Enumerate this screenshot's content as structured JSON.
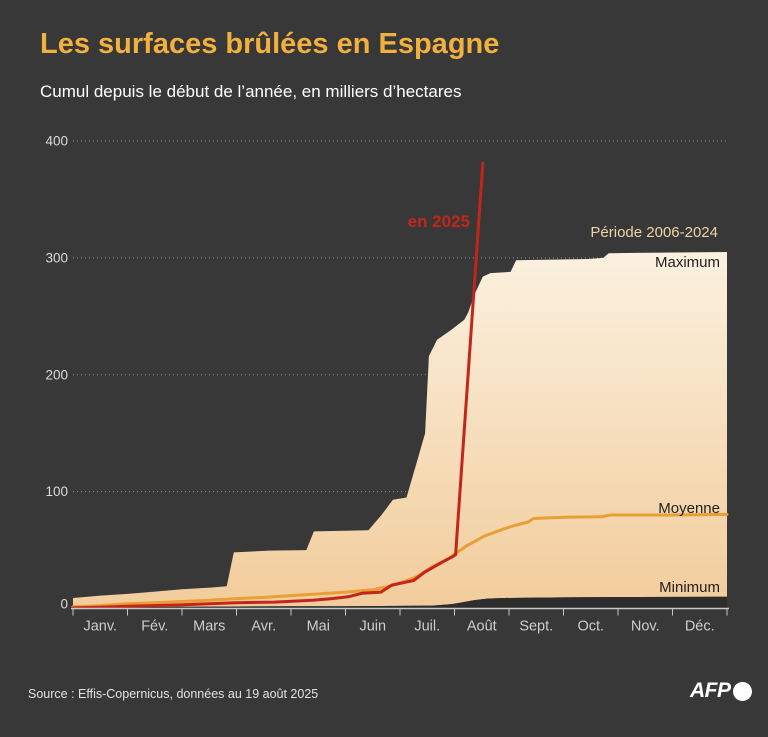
{
  "page": {
    "title": "Les surfaces brûlées en Espagne",
    "subtitle": "Cumul depuis le début de l’année, en milliers d’hectares"
  },
  "annotations": {
    "current_year": "en 2025",
    "band_period": "Période 2006-2024",
    "maximum": "Maximum",
    "moyenne": "Moyenne",
    "minimum": "Minimum"
  },
  "footer": {
    "source": "Source : Effis-Copernicus, données au 19 août 2025",
    "logo": "AFP"
  },
  "colors": {
    "background": "#383838",
    "title": "#F2B03E",
    "subtitle": "#FFFFFF",
    "axis_text": "#CDCDCD",
    "ytick_text": "#DADADA",
    "grid": "#8F8F8F",
    "axis_line": "#C8C8C8",
    "band_top": "#FBF1DF",
    "band_bottom": "#F2CC9C",
    "band_label": "#EFD3A6",
    "dark_label": "#1F1F1F",
    "min_fill": "#2D2D2D",
    "red_2025": "#C3251C",
    "orange_moyenne": "#E89F33"
  },
  "chart_data": {
    "type": "area+line",
    "title": "Les surfaces brûlées en Espagne",
    "subtitle": "Cumul depuis le début de l’année, en milliers d’hectares",
    "unit": "milliers d’hectares",
    "x_tick_labels": [
      "Janv.",
      "Fév.",
      "Mars",
      "Avr.",
      "Mai",
      "Juin",
      "Juil.",
      "Août",
      "Sept.",
      "Oct.",
      "Nov.",
      "Déc."
    ],
    "y_ticks": [
      0,
      100,
      200,
      300,
      400
    ],
    "ylim": [
      0,
      400
    ],
    "xlim_months": [
      0,
      12
    ],
    "grid": "dotted-horizontal",
    "band": {
      "label": "Période 2006-2024",
      "max_label": "Maximum",
      "min_label": "Minimum",
      "max_points": [
        [
          0,
          9
        ],
        [
          0.5,
          11
        ],
        [
          1,
          12.5
        ],
        [
          1.5,
          14.5
        ],
        [
          2,
          16.5
        ],
        [
          2.55,
          18
        ],
        [
          2.82,
          19
        ],
        [
          2.95,
          48
        ],
        [
          3.6,
          49.5
        ],
        [
          4.28,
          50
        ],
        [
          4.42,
          66
        ],
        [
          5.42,
          67
        ],
        [
          5.66,
          80
        ],
        [
          5.87,
          93
        ],
        [
          6.12,
          95
        ],
        [
          6.32,
          127
        ],
        [
          6.46,
          150
        ],
        [
          6.53,
          216
        ],
        [
          6.68,
          230
        ],
        [
          6.93,
          238
        ],
        [
          7.18,
          247
        ],
        [
          7.25,
          253
        ],
        [
          7.38,
          270
        ],
        [
          7.52,
          284
        ],
        [
          7.66,
          287
        ],
        [
          8.03,
          288
        ],
        [
          8.13,
          298
        ],
        [
          9.45,
          299
        ],
        [
          9.73,
          300
        ],
        [
          9.83,
          304
        ],
        [
          12,
          305
        ]
      ],
      "min_points": [
        [
          0,
          1
        ],
        [
          1,
          1.2
        ],
        [
          2,
          1.5
        ],
        [
          3,
          1.7
        ],
        [
          4,
          2
        ],
        [
          5,
          2
        ],
        [
          6,
          2.2
        ],
        [
          6.6,
          2.5
        ],
        [
          6.95,
          3.8
        ],
        [
          7.1,
          5
        ],
        [
          7.35,
          7
        ],
        [
          7.6,
          8.5
        ],
        [
          7.9,
          9
        ],
        [
          8.5,
          9.3
        ],
        [
          9,
          9.5
        ],
        [
          10,
          9.8
        ],
        [
          12,
          10
        ]
      ]
    },
    "series": [
      {
        "name": "Moyenne",
        "color_key": "orange_moyenne",
        "points": [
          [
            0,
            1.5
          ],
          [
            0.5,
            2.5
          ],
          [
            1,
            4
          ],
          [
            1.5,
            5
          ],
          [
            2,
            6
          ],
          [
            2.5,
            7
          ],
          [
            3,
            8.5
          ],
          [
            3.5,
            9.5
          ],
          [
            4,
            11
          ],
          [
            4.5,
            12.5
          ],
          [
            5,
            14
          ],
          [
            5.5,
            16
          ],
          [
            5.8,
            19
          ],
          [
            6,
            22
          ],
          [
            6.3,
            27
          ],
          [
            6.6,
            36
          ],
          [
            6.9,
            43
          ],
          [
            7.2,
            53
          ],
          [
            7.55,
            62
          ],
          [
            7.9,
            68
          ],
          [
            8.1,
            71
          ],
          [
            8.35,
            74
          ],
          [
            8.45,
            77
          ],
          [
            9,
            78
          ],
          [
            9.7,
            78.5
          ],
          [
            9.85,
            80
          ],
          [
            11,
            80
          ],
          [
            12,
            80.5
          ]
        ]
      },
      {
        "name": "en 2025",
        "color_key": "red_2025",
        "points": [
          [
            0,
            0.5
          ],
          [
            0.5,
            1
          ],
          [
            1,
            2
          ],
          [
            1.9,
            3
          ],
          [
            2.5,
            4
          ],
          [
            3,
            5
          ],
          [
            3.7,
            5.5
          ],
          [
            4.4,
            7
          ],
          [
            4.75,
            8.5
          ],
          [
            5.05,
            10
          ],
          [
            5.3,
            13
          ],
          [
            5.65,
            14
          ],
          [
            5.85,
            20
          ],
          [
            6.05,
            22
          ],
          [
            6.25,
            24
          ],
          [
            6.45,
            31
          ],
          [
            6.6,
            35
          ],
          [
            6.75,
            39
          ],
          [
            6.95,
            44
          ],
          [
            7.02,
            46
          ],
          [
            7.52,
            381
          ]
        ]
      }
    ]
  }
}
